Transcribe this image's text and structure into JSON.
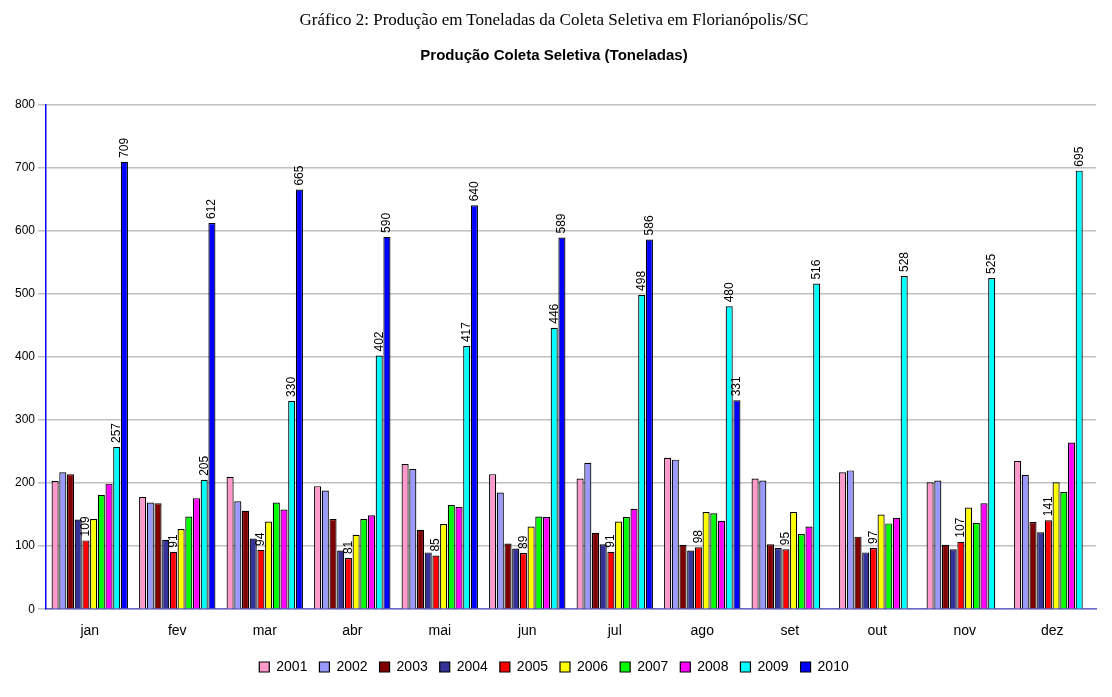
{
  "chart_data": {
    "type": "bar",
    "title": "Gráfico 2: Produção em Toneladas da Coleta Seletiva em Florianópolis/SC",
    "subtitle": "Produção Coleta Seletiva (Toneladas)",
    "categories": [
      "jan",
      "fev",
      "mar",
      "abr",
      "mai",
      "jun",
      "jul",
      "ago",
      "set",
      "out",
      "nov",
      "dez"
    ],
    "series": [
      {
        "name": "2001",
        "color": "#ff99cc",
        "values": [
          203,
          178,
          210,
          195,
          230,
          214,
          207,
          240,
          207,
          217,
          201,
          235
        ]
      },
      {
        "name": "2002",
        "color": "#9999ff",
        "values": [
          217,
          169,
          171,
          188,
          222,
          185,
          232,
          237,
          204,
          220,
          204,
          213
        ]
      },
      {
        "name": "2003",
        "color": "#800000",
        "values": [
          214,
          168,
          156,
          143,
          126,
          104,
          121,
          102,
          103,
          115,
          102,
          138
        ]
      },
      {
        "name": "2004",
        "color": "#333399",
        "values": [
          142,
          110,
          112,
          93,
          90,
          96,
          103,
          93,
          97,
          90,
          95,
          122
        ]
      },
      {
        "name": "2005",
        "color": "#ff0000",
        "values": [
          109,
          91,
          94,
          81,
          85,
          89,
          91,
          98,
          95,
          97,
          107,
          141
        ],
        "value_labels": [
          "109",
          "91",
          "94",
          "81",
          "85",
          "89",
          "91",
          "98",
          "95",
          "97",
          "107",
          "141"
        ]
      },
      {
        "name": "2006",
        "color": "#ffff00",
        "values": [
          143,
          127,
          139,
          118,
          135,
          131,
          139,
          154,
          154,
          150,
          161,
          201
        ]
      },
      {
        "name": "2007",
        "color": "#00ff00",
        "values": [
          181,
          147,
          169,
          143,
          165,
          147,
          146,
          152,
          119,
          136,
          137,
          186
        ]
      },
      {
        "name": "2008",
        "color": "#ff00ff",
        "values": [
          199,
          176,
          158,
          149,
          162,
          146,
          159,
          140,
          131,
          145,
          168,
          264
        ]
      },
      {
        "name": "2009",
        "color": "#00ffff",
        "values": [
          257,
          205,
          330,
          402,
          417,
          446,
          498,
          480,
          516,
          528,
          525,
          695
        ],
        "value_labels": [
          "257",
          "205",
          "330",
          "402",
          "417",
          "446",
          "498",
          "480",
          "516",
          "528",
          "525",
          "695"
        ]
      },
      {
        "name": "2010",
        "color": "#0000ff",
        "values": [
          709,
          612,
          665,
          590,
          640,
          589,
          586,
          331,
          null,
          null,
          null,
          null
        ],
        "value_labels": [
          "709",
          "612",
          "665",
          "590",
          "640",
          "589",
          "586",
          "331",
          null,
          null,
          null,
          null
        ]
      }
    ],
    "ylim": [
      0,
      800
    ],
    "yticks": [
      0,
      100,
      200,
      300,
      400,
      500,
      600,
      700,
      800
    ],
    "grid": "y",
    "legend": "bottom"
  }
}
